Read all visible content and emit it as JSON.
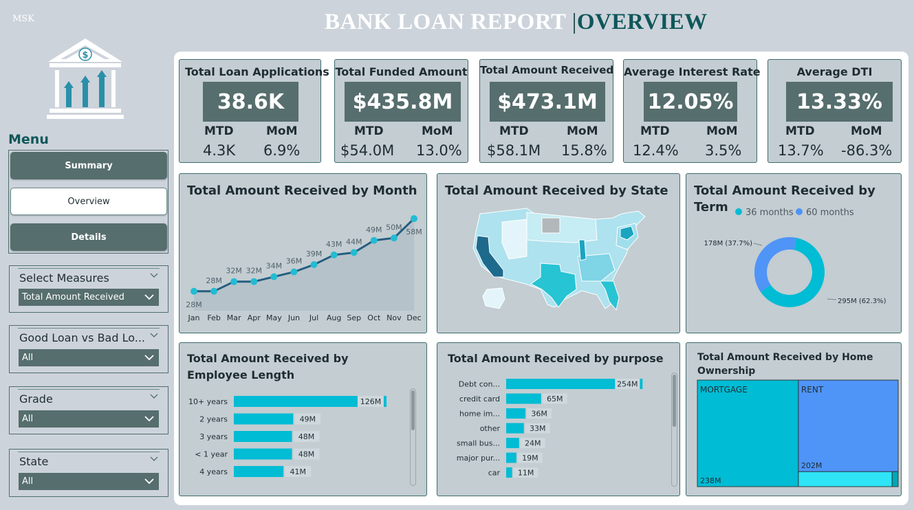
{
  "brand": "MSK",
  "report": {
    "title_main": "BANK LOAN REPORT",
    "title_sep": "|",
    "title_sub": "OVERVIEW"
  },
  "logo": {
    "icon": "bank-icon",
    "symbol": "$"
  },
  "menu": {
    "heading": "Menu",
    "buttons": [
      {
        "label": "Summary",
        "active": false
      },
      {
        "label": "Overview",
        "active": true
      },
      {
        "label": "Details",
        "active": false
      }
    ]
  },
  "slicers": [
    {
      "title": "Select Measures",
      "value": "Total Amount Received"
    },
    {
      "title": "Good Loan vs Bad Lo...",
      "value": "All"
    },
    {
      "title": "Grade",
      "value": "All"
    },
    {
      "title": "State",
      "value": "All"
    }
  ],
  "kpis": [
    {
      "label": "Total Loan Applications",
      "value": "38.6K",
      "mtd_label": "MTD",
      "mom_label": "MoM",
      "mtd": "4.3K",
      "mom": "6.9%"
    },
    {
      "label": "Total Funded Amount",
      "value": "$435.8M",
      "mtd_label": "MTD",
      "mom_label": "MoM",
      "mtd": "$54.0M",
      "mom": "13.0%"
    },
    {
      "label": "Total Amount Received",
      "value": "$473.1M",
      "mtd_label": "MTD",
      "mom_label": "MoM",
      "mtd": "$58.1M",
      "mom": "15.8%"
    },
    {
      "label": "Average Interest Rate",
      "value": "12.05%",
      "mtd_label": "MTD",
      "mom_label": "MoM",
      "mtd": "12.4%",
      "mom": "3.5%"
    },
    {
      "label": "Average DTI",
      "value": "13.33%",
      "mtd_label": "MTD",
      "mom_label": "MoM",
      "mtd": "13.7%",
      "mom": "-86.3%"
    }
  ],
  "visuals": {
    "month_title": "Total Amount Received by Month",
    "state_title": "Total Amount Received by State",
    "term_title": "Total Amount Received by Term",
    "emp_title": "Total Amount Received by Employee Length",
    "purpose_title": "Total Amount Received by purpose",
    "home_title": "Total Amount Received by Home Ownership"
  },
  "colors": {
    "accent": "#00bcd4",
    "secondary": "#4f94f7",
    "dark": "#566e6d",
    "map_dark": "#1e6a8d"
  },
  "chart_data": [
    {
      "type": "area",
      "title": "Total Amount Received by Month",
      "categories": [
        "Jan",
        "Feb",
        "Mar",
        "Apr",
        "May",
        "Jun",
        "Jul",
        "Aug",
        "Sep",
        "Oct",
        "Nov",
        "Dec"
      ],
      "values": [
        28,
        28,
        32,
        32,
        34,
        36,
        39,
        43,
        44,
        49,
        50,
        58
      ],
      "labels": [
        "28M",
        "28M",
        "32M",
        "32M",
        "34M",
        "36M",
        "39M",
        "43M",
        "44M",
        "49M",
        "50M",
        "58M"
      ],
      "ylim": [
        20,
        60
      ]
    },
    {
      "type": "pie",
      "title": "Total Amount Received by Term",
      "series": [
        {
          "name": "36 months",
          "value": 295,
          "label": "295M (62.3%)",
          "color": "#00bcd4"
        },
        {
          "name": "60 months",
          "value": 178,
          "label": "178M (37.7%)",
          "color": "#4f94f7"
        }
      ],
      "legend": "top"
    },
    {
      "type": "bar",
      "title": "Total Amount Received by Employee Length",
      "categories": [
        "10+ years",
        "2 years",
        "3 years",
        "< 1 year",
        "4 years"
      ],
      "values": [
        126,
        49,
        48,
        48,
        41
      ],
      "labels": [
        "126M",
        "49M",
        "48M",
        "48M",
        "41M"
      ],
      "xlim": [
        0,
        130
      ]
    },
    {
      "type": "bar",
      "title": "Total Amount Received by purpose",
      "categories": [
        "Debt con...",
        "credit card",
        "home im...",
        "other",
        "small bus...",
        "major pur...",
        "car"
      ],
      "values": [
        254,
        65,
        36,
        33,
        24,
        19,
        11
      ],
      "labels": [
        "254M",
        "65M",
        "36M",
        "33M",
        "24M",
        "19M",
        "11M"
      ],
      "xlim": [
        0,
        260
      ]
    },
    {
      "type": "treemap",
      "title": "Total Amount Received by Home Ownership",
      "series": [
        {
          "name": "MORTGAGE",
          "value": 238,
          "label": "238M",
          "color": "#00bcd4"
        },
        {
          "name": "RENT",
          "value": 202,
          "label": "202M",
          "color": "#4f94f7"
        },
        {
          "name": "",
          "value": 31,
          "label": "",
          "color": "#2ee4f6"
        },
        {
          "name": "",
          "value": 2,
          "label": "",
          "color": "#00a6b8"
        }
      ]
    }
  ]
}
